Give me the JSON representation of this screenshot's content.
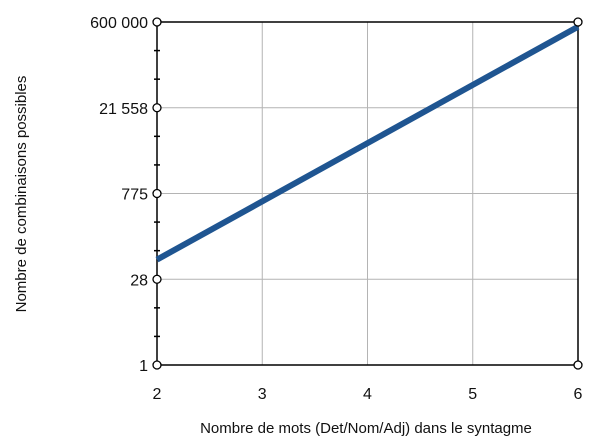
{
  "chart_data": {
    "type": "line",
    "title": "",
    "xlabel": "Nombre de mots (Det/Nom/Adj) dans le syntagme",
    "ylabel": "Nombre de combinaisons possibles",
    "x_ticks": [
      2,
      3,
      4,
      5,
      6
    ],
    "y_ticks": [
      {
        "value": 1,
        "label": "1"
      },
      {
        "value": 28,
        "label": "28"
      },
      {
        "value": 775,
        "label": "775"
      },
      {
        "value": 21558,
        "label": "21 558"
      },
      {
        "value": 600000,
        "label": "600 000"
      }
    ],
    "xlim": [
      2,
      6
    ],
    "ylim": [
      1,
      600000
    ],
    "y_scale": "log",
    "grid": true,
    "series": [
      {
        "color": "#1f5591",
        "points": [
          {
            "x": 2,
            "y": 60
          },
          {
            "x": 6,
            "y": 500000
          }
        ]
      }
    ]
  }
}
